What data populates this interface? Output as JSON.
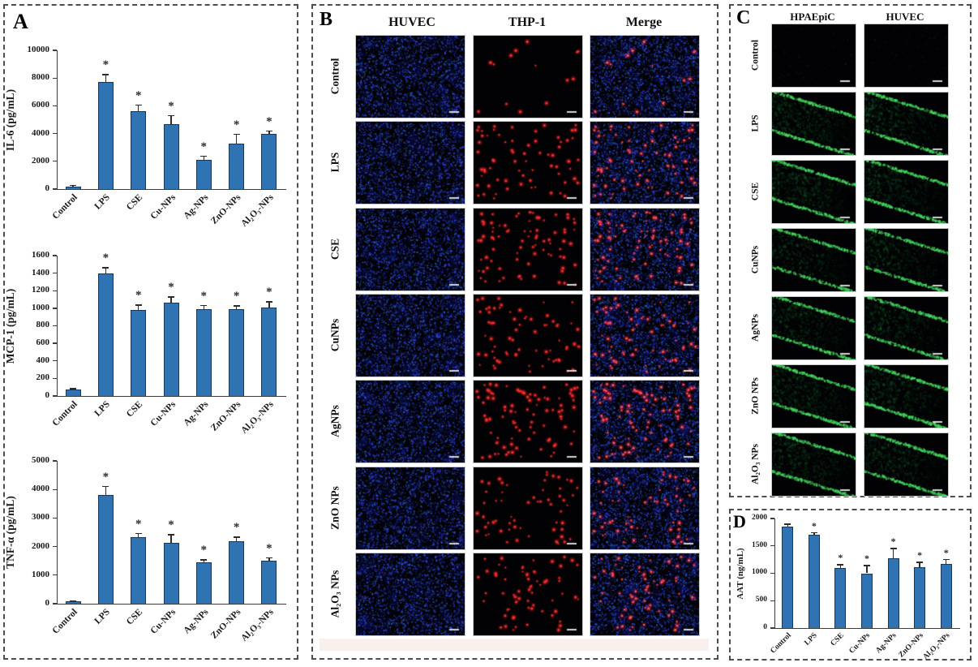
{
  "panels": {
    "A": {
      "label": "A"
    },
    "B": {
      "label": "B",
      "columns": [
        "HUVEC",
        "THP-1",
        "Merge"
      ],
      "rows": [
        {
          "label": "Control",
          "thp1_dots": 14
        },
        {
          "label": "LPS",
          "thp1_dots": 70
        },
        {
          "label": "CSE",
          "thp1_dots": 85
        },
        {
          "label": "CuNPs",
          "thp1_dots": 70
        },
        {
          "label": "AgNPs",
          "thp1_dots": 90
        },
        {
          "label": "ZnO NPs",
          "thp1_dots": 60
        },
        {
          "label": "Al₂O₃ NPs",
          "thp1_dots": 65
        }
      ]
    },
    "C": {
      "label": "C",
      "columns": [
        "HPAEpiC",
        "HUVEC"
      ],
      "rows": [
        {
          "label": "Control",
          "green_intensity": 0.05
        },
        {
          "label": "LPS",
          "green_intensity": 1.0
        },
        {
          "label": "CSE",
          "green_intensity": 0.95
        },
        {
          "label": "CuNPs",
          "green_intensity": 0.8
        },
        {
          "label": "AgNPs",
          "green_intensity": 0.85
        },
        {
          "label": "ZnO NPs",
          "green_intensity": 1.0
        },
        {
          "label": "Al₂O₃ NPs",
          "green_intensity": 0.9
        }
      ]
    },
    "D": {
      "label": "D"
    }
  },
  "chart_data": [
    {
      "type": "bar",
      "title": "",
      "ylabel": "IL-6 (pg/mL)",
      "xlabel": "",
      "ylim": [
        0,
        10000
      ],
      "ytick_step": 2000,
      "grid": false,
      "legend": "none",
      "categories": [
        "Control",
        "LPS",
        "CSE",
        "Cu-NPs",
        "Ag-NPs",
        "ZnO-NPs",
        "Al₂O₃-NPs"
      ],
      "values": [
        200,
        7700,
        5600,
        4700,
        2100,
        3300,
        3950
      ],
      "errors": [
        50,
        550,
        450,
        600,
        280,
        650,
        220
      ],
      "sig": [
        "",
        "*",
        "*",
        "*",
        "*",
        "*",
        "*"
      ]
    },
    {
      "type": "bar",
      "title": "",
      "ylabel": "MCP-1 (pg/mL)",
      "xlabel": "",
      "ylim": [
        0,
        1600
      ],
      "ytick_step": 200,
      "grid": false,
      "legend": "none",
      "categories": [
        "Control",
        "LPS",
        "CSE",
        "Cu-NPs",
        "Ag-NPs",
        "ZnO-NPs",
        "Al₂O₃-NPs"
      ],
      "values": [
        70,
        1400,
        980,
        1060,
        985,
        990,
        1010
      ],
      "errors": [
        15,
        60,
        55,
        70,
        45,
        35,
        65
      ],
      "sig": [
        "",
        "*",
        "*",
        "*",
        "*",
        "*",
        "*"
      ]
    },
    {
      "type": "bar",
      "title": "",
      "ylabel": "TNF-α (pg/mL)",
      "xlabel": "",
      "ylim": [
        0,
        5000
      ],
      "ytick_step": 1000,
      "grid": false,
      "legend": "none",
      "categories": [
        "Control",
        "LPS",
        "CSE",
        "Cu-NPs",
        "Ag-NPs",
        "ZnO-NPs",
        "Al₂O₃-NPs"
      ],
      "values": [
        80,
        3800,
        2330,
        2120,
        1450,
        2200,
        1510
      ],
      "errors": [
        25,
        300,
        130,
        300,
        90,
        130,
        90
      ],
      "sig": [
        "",
        "*",
        "*",
        "*",
        "*",
        "*",
        "*"
      ]
    },
    {
      "type": "bar",
      "title": "",
      "ylabel": "AAT (ng/mL)",
      "xlabel": "",
      "ylim": [
        0,
        2000
      ],
      "ytick_step": 500,
      "grid": false,
      "legend": "none",
      "categories": [
        "Control",
        "LPS",
        "CSE",
        "Cu-NPs",
        "Ag-NPs",
        "ZnO-NPs",
        "Al₂O₃-NPs"
      ],
      "values": [
        1850,
        1700,
        1100,
        1000,
        1270,
        1110,
        1170
      ],
      "errors": [
        45,
        40,
        55,
        140,
        180,
        90,
        80
      ],
      "sig": [
        "",
        "*",
        "*",
        "*",
        "*",
        "*",
        "*"
      ]
    }
  ],
  "colors": {
    "bar_fill": "#2F73B3",
    "bar_border": "#17375E",
    "axis": "#3c3c3c",
    "error_bar": "#2b2b2b",
    "blue_channel": "#2230E0",
    "red_channel": "#FF2A2A",
    "green_channel": "#3ECF5A"
  }
}
